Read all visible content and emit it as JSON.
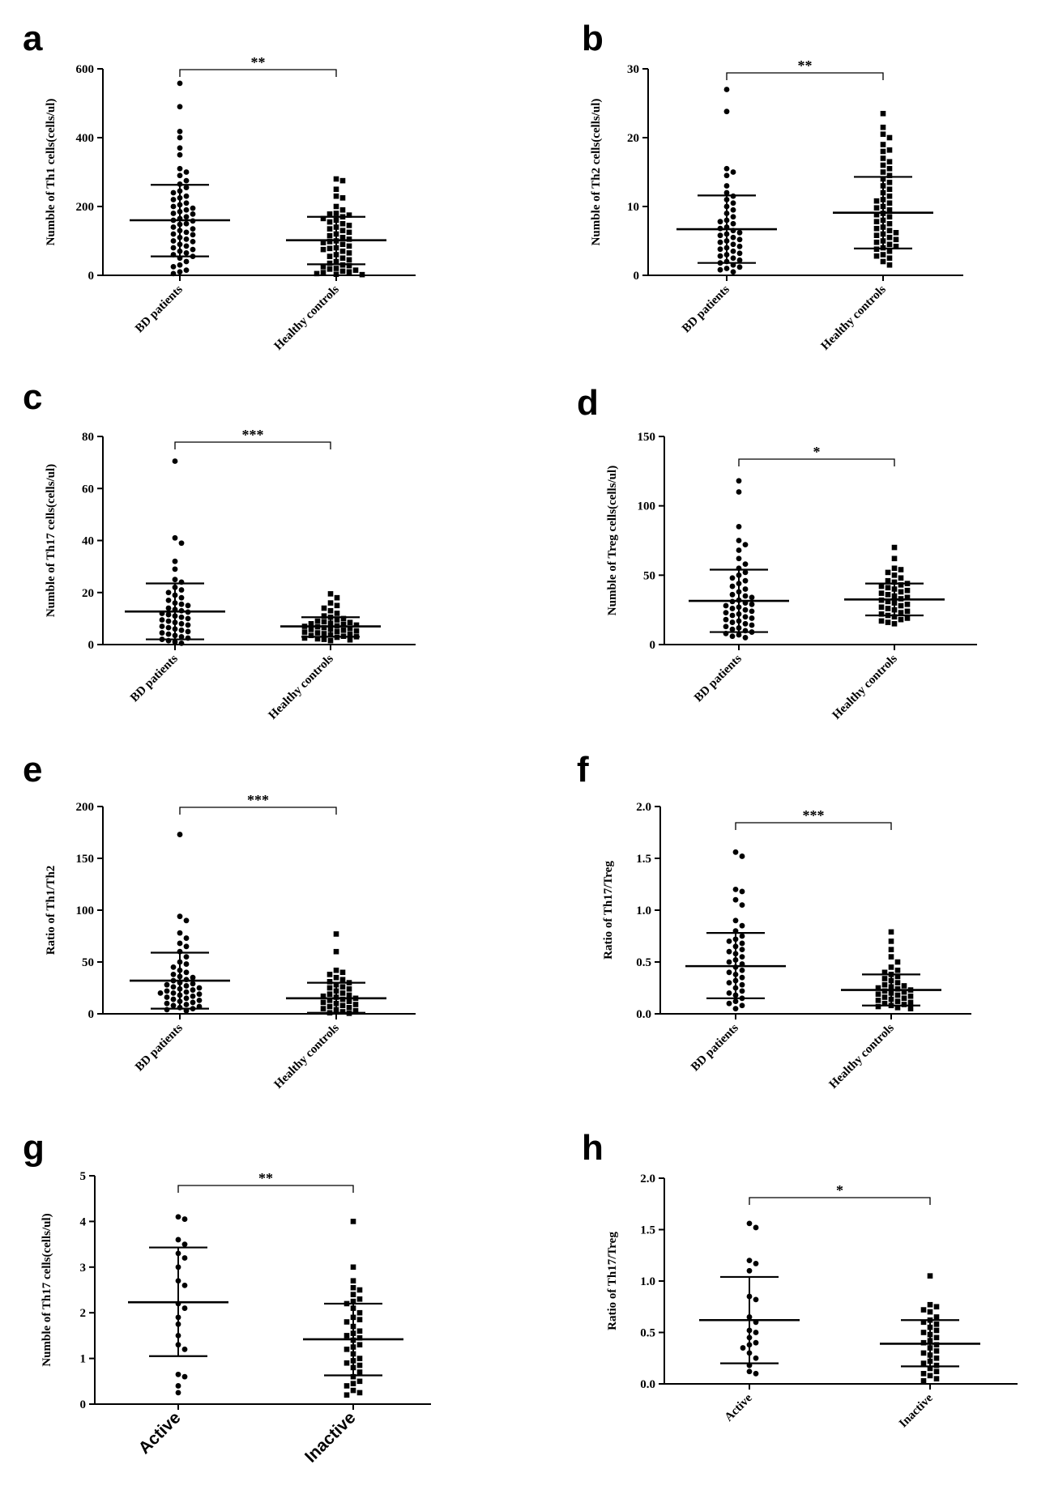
{
  "chart_data": [
    {
      "type": "scatter",
      "panel": "a",
      "ylabel": "Numble of Th1 cells(cells/ul)",
      "ylim": [
        0,
        600
      ],
      "yticks": [
        0,
        200,
        400,
        600
      ],
      "categories": [
        "BD patients",
        "Healthy controls"
      ],
      "significance": "**",
      "series": [
        {
          "marker": "circle",
          "mean": 160,
          "sd_upper": 263,
          "sd_lower": 55,
          "values": [
            558,
            490,
            418,
            400,
            370,
            350,
            310,
            300,
            290,
            275,
            265,
            255,
            245,
            240,
            230,
            225,
            220,
            210,
            205,
            200,
            195,
            190,
            185,
            180,
            178,
            170,
            165,
            160,
            158,
            150,
            148,
            140,
            135,
            130,
            125,
            120,
            118,
            110,
            105,
            100,
            98,
            90,
            85,
            80,
            75,
            70,
            65,
            60,
            55,
            50,
            40,
            30,
            25,
            15,
            10,
            5
          ]
        },
        {
          "marker": "square",
          "mean": 102,
          "sd_upper": 170,
          "sd_lower": 32,
          "values": [
            280,
            275,
            250,
            230,
            225,
            200,
            190,
            180,
            178,
            175,
            170,
            165,
            160,
            155,
            150,
            145,
            140,
            135,
            130,
            125,
            120,
            115,
            110,
            105,
            100,
            98,
            95,
            90,
            85,
            80,
            78,
            75,
            70,
            65,
            60,
            55,
            50,
            45,
            40,
            35,
            30,
            28,
            25,
            20,
            18,
            15,
            12,
            10,
            8,
            5,
            3,
            2
          ]
        }
      ]
    },
    {
      "type": "scatter",
      "panel": "b",
      "ylabel": "Numble of Th2 cells(cells/ul)",
      "ylim": [
        0,
        30
      ],
      "yticks": [
        0,
        10,
        20,
        30
      ],
      "categories": [
        "BD patients",
        "Healthy controls"
      ],
      "significance": "**",
      "series": [
        {
          "marker": "circle",
          "mean": 6.7,
          "sd_upper": 11.6,
          "sd_lower": 1.8,
          "values": [
            27,
            23.8,
            15.5,
            15,
            14.5,
            13,
            12,
            11.5,
            11,
            10.5,
            10,
            9.5,
            9,
            8.5,
            8,
            7.8,
            7.5,
            7,
            6.8,
            6.5,
            6.2,
            6,
            5.8,
            5.5,
            5.2,
            5,
            4.8,
            4.5,
            4.2,
            4,
            3.8,
            3.5,
            3.2,
            3,
            2.8,
            2.5,
            2.2,
            2,
            1.8,
            1.5,
            1.2,
            1,
            0.8,
            0.5
          ]
        },
        {
          "marker": "square",
          "mean": 9.1,
          "sd_upper": 14.3,
          "sd_lower": 3.9,
          "values": [
            23.5,
            21.5,
            20.5,
            20,
            19,
            18.2,
            18,
            17,
            16.5,
            16,
            15.5,
            15,
            14.5,
            14,
            13.5,
            13,
            12.5,
            12,
            11.5,
            11,
            10.8,
            10.5,
            10,
            9.8,
            9.5,
            9,
            8.8,
            8.5,
            8,
            7.8,
            7.5,
            7,
            6.8,
            6.5,
            6.2,
            6,
            5.8,
            5.5,
            5.2,
            5,
            4.8,
            4.5,
            4.2,
            4,
            3.8,
            3.5,
            3,
            2.8,
            2.5,
            2,
            1.5
          ]
        }
      ]
    },
    {
      "type": "scatter",
      "panel": "c",
      "ylabel": "Numble of Th17 cells(cells/ul)",
      "ylim": [
        0,
        80
      ],
      "yticks": [
        0,
        20,
        40,
        60,
        80
      ],
      "categories": [
        "BD patients",
        "Healthy controls"
      ],
      "significance": "***",
      "series": [
        {
          "marker": "circle",
          "mean": 12.7,
          "sd_upper": 23.5,
          "sd_lower": 2,
          "values": [
            70.5,
            41,
            39,
            32,
            29,
            25,
            24,
            22,
            21,
            20,
            19,
            18,
            17,
            16,
            15.5,
            15,
            14,
            13.5,
            13,
            12.5,
            12,
            11.5,
            11,
            10.5,
            10,
            9.5,
            9,
            8.5,
            8,
            7.5,
            7,
            6.5,
            6,
            5.5,
            5,
            4.5,
            4,
            3.5,
            3,
            2.5,
            2,
            1.5,
            1,
            0.5
          ]
        },
        {
          "marker": "square",
          "mean": 7,
          "sd_upper": 10.5,
          "sd_lower": 3,
          "values": [
            19.5,
            18,
            16,
            15,
            14,
            13,
            12,
            11,
            10.5,
            10,
            9.5,
            9,
            8.8,
            8.5,
            8.2,
            8,
            7.8,
            7.5,
            7.2,
            7,
            6.8,
            6.5,
            6.2,
            6,
            5.8,
            5.5,
            5.2,
            5,
            4.8,
            4.5,
            4.2,
            4,
            3.8,
            3.5,
            3.2,
            3,
            2.8,
            2.5,
            2.2,
            2,
            1.8,
            1.5
          ]
        }
      ]
    },
    {
      "type": "scatter",
      "panel": "d",
      "ylabel": "Numble of Treg cells(cells/ul)",
      "ylim": [
        0,
        150
      ],
      "yticks": [
        0,
        50,
        100,
        150
      ],
      "categories": [
        "BD patients",
        "Healthy controls"
      ],
      "significance": "*",
      "series": [
        {
          "marker": "circle",
          "mean": 31.5,
          "sd_upper": 54,
          "sd_lower": 9,
          "values": [
            118,
            110,
            85,
            75,
            72,
            68,
            62,
            58,
            55,
            52,
            50,
            48,
            46,
            44,
            42,
            40,
            38,
            36,
            35,
            34,
            32,
            31,
            30,
            29,
            28,
            27,
            26,
            25,
            24,
            23,
            22,
            21,
            20,
            19,
            18,
            17,
            16,
            15,
            14,
            13,
            12,
            11,
            10,
            9,
            8,
            7,
            6,
            5
          ]
        },
        {
          "marker": "square",
          "mean": 32.5,
          "sd_upper": 44,
          "sd_lower": 21,
          "values": [
            70,
            62,
            55,
            54,
            52,
            50,
            48,
            46,
            45,
            44,
            43,
            42,
            41,
            40,
            39,
            38,
            37,
            36,
            35,
            34,
            33,
            32,
            31,
            30,
            29,
            28,
            27,
            26,
            25,
            24,
            23,
            22,
            21,
            20,
            19,
            18,
            17,
            16,
            15
          ]
        }
      ]
    },
    {
      "type": "scatter",
      "panel": "e",
      "ylabel": "Ratio of Th1/Th2",
      "ylim": [
        0,
        200
      ],
      "yticks": [
        0,
        50,
        100,
        150,
        200
      ],
      "categories": [
        "BD patients",
        "Healthy controls"
      ],
      "significance": "***",
      "series": [
        {
          "marker": "circle",
          "mean": 32,
          "sd_upper": 59,
          "sd_lower": 5,
          "values": [
            173,
            94,
            90,
            78,
            73,
            68,
            65,
            60,
            55,
            50,
            48,
            45,
            42,
            40,
            38,
            36,
            35,
            33,
            32,
            30,
            29,
            28,
            27,
            26,
            25,
            24,
            23,
            22,
            21,
            20,
            20,
            19,
            18,
            17,
            16,
            15,
            14,
            13,
            12,
            11,
            10,
            9,
            8,
            7,
            6,
            5,
            4,
            3
          ]
        },
        {
          "marker": "square",
          "mean": 15,
          "sd_upper": 30,
          "sd_lower": 1,
          "values": [
            77,
            60,
            42,
            40,
            38,
            35,
            33,
            31,
            30,
            28,
            26,
            25,
            24,
            22,
            20,
            19,
            18,
            17,
            16,
            15,
            14,
            13,
            12,
            11,
            10,
            9,
            8,
            7,
            6,
            5,
            4,
            3,
            2,
            1,
            0.5
          ]
        }
      ]
    },
    {
      "type": "scatter",
      "panel": "f",
      "ylabel": "Ratio of Th17/Treg",
      "ylim": [
        0,
        2
      ],
      "yticks": [
        "0.0",
        "0.5",
        "1.0",
        "1.5",
        "2.0"
      ],
      "categories": [
        "BD patients",
        "Healthy controls"
      ],
      "significance": "***",
      "series": [
        {
          "marker": "circle",
          "mean": 0.46,
          "sd_upper": 0.78,
          "sd_lower": 0.15,
          "values": [
            1.56,
            1.52,
            1.2,
            1.18,
            1.1,
            1.05,
            0.9,
            0.85,
            0.8,
            0.75,
            0.72,
            0.7,
            0.68,
            0.65,
            0.62,
            0.6,
            0.58,
            0.55,
            0.52,
            0.5,
            0.48,
            0.45,
            0.42,
            0.4,
            0.38,
            0.35,
            0.32,
            0.3,
            0.28,
            0.25,
            0.22,
            0.2,
            0.18,
            0.15,
            0.12,
            0.1,
            0.08,
            0.05
          ]
        },
        {
          "marker": "square",
          "mean": 0.23,
          "sd_upper": 0.38,
          "sd_lower": 0.08,
          "values": [
            0.79,
            0.7,
            0.62,
            0.55,
            0.5,
            0.45,
            0.42,
            0.4,
            0.38,
            0.36,
            0.34,
            0.32,
            0.3,
            0.28,
            0.27,
            0.26,
            0.25,
            0.24,
            0.23,
            0.22,
            0.21,
            0.2,
            0.19,
            0.18,
            0.17,
            0.16,
            0.15,
            0.14,
            0.13,
            0.12,
            0.11,
            0.1,
            0.09,
            0.08,
            0.07,
            0.06,
            0.05
          ]
        }
      ]
    },
    {
      "type": "scatter",
      "panel": "g",
      "ylabel": "Numble of Th17 cells(cells/ul)",
      "ylim": [
        0,
        5
      ],
      "yticks": [
        0,
        1,
        2,
        3,
        4,
        5
      ],
      "categories": [
        "Active",
        "Inactive"
      ],
      "significance": "**",
      "series": [
        {
          "marker": "circle",
          "mean": 2.23,
          "sd_upper": 3.43,
          "sd_lower": 1.05,
          "values": [
            4.1,
            4.05,
            3.6,
            3.5,
            3.3,
            3.2,
            3.0,
            2.7,
            2.6,
            2.2,
            2.1,
            1.9,
            1.75,
            1.5,
            1.3,
            1.2,
            0.65,
            0.6,
            0.4,
            0.25
          ]
        },
        {
          "marker": "square",
          "mean": 1.42,
          "sd_upper": 2.2,
          "sd_lower": 0.63,
          "values": [
            4.0,
            3.0,
            2.7,
            2.55,
            2.5,
            2.4,
            2.3,
            2.25,
            2.2,
            2.1,
            2.0,
            1.9,
            1.85,
            1.8,
            1.7,
            1.6,
            1.55,
            1.5,
            1.45,
            1.4,
            1.3,
            1.25,
            1.2,
            1.1,
            1.0,
            0.95,
            0.9,
            0.85,
            0.8,
            0.7,
            0.6,
            0.5,
            0.45,
            0.4,
            0.3,
            0.25,
            0.2
          ]
        }
      ]
    },
    {
      "type": "scatter",
      "panel": "h",
      "ylabel": "Ratio of Th17/Treg",
      "ylim": [
        0,
        2
      ],
      "yticks": [
        "0.0",
        "0.5",
        "1.0",
        "1.5",
        "2.0"
      ],
      "categories": [
        "Active",
        "Inactive"
      ],
      "significance": "*",
      "series": [
        {
          "marker": "circle",
          "mean": 0.62,
          "sd_upper": 1.04,
          "sd_lower": 0.2,
          "values": [
            1.56,
            1.52,
            1.2,
            1.17,
            1.1,
            0.85,
            0.82,
            0.65,
            0.6,
            0.52,
            0.5,
            0.45,
            0.4,
            0.38,
            0.35,
            0.3,
            0.25,
            0.18,
            0.12,
            0.1
          ]
        },
        {
          "marker": "square",
          "mean": 0.39,
          "sd_upper": 0.62,
          "sd_lower": 0.17,
          "values": [
            1.05,
            0.77,
            0.75,
            0.72,
            0.7,
            0.65,
            0.62,
            0.6,
            0.58,
            0.55,
            0.52,
            0.5,
            0.48,
            0.45,
            0.42,
            0.4,
            0.38,
            0.35,
            0.32,
            0.3,
            0.28,
            0.25,
            0.22,
            0.2,
            0.18,
            0.15,
            0.12,
            0.1,
            0.08,
            0.05,
            0.03
          ]
        }
      ]
    }
  ]
}
